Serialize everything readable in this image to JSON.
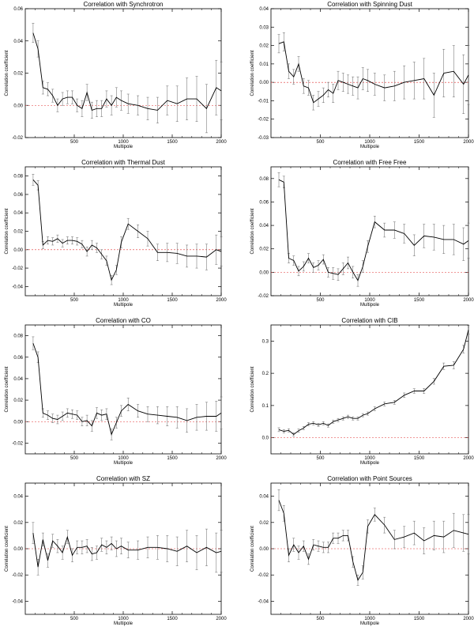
{
  "chart_data": [
    {
      "type": "line",
      "title": "Correlation with Synchrotron",
      "xlabel": "Multipole",
      "ylabel": "Correlation coefficient",
      "xlim": [
        0,
        2000
      ],
      "ylim": [
        -0.02,
        0.06
      ],
      "xticks": [
        "500",
        "1000",
        "1500",
        "2000"
      ],
      "yticks": [
        "-0.02",
        "0.00",
        "0.02",
        "0.04",
        "0.06"
      ],
      "zero_line": true,
      "x": [
        80,
        130,
        180,
        230,
        280,
        330,
        380,
        430,
        480,
        530,
        580,
        630,
        680,
        730,
        780,
        830,
        880,
        930,
        980,
        1050,
        1150,
        1250,
        1350,
        1450,
        1550,
        1650,
        1750,
        1850,
        1950,
        2000
      ],
      "y": [
        0.045,
        0.035,
        0.011,
        0.01,
        0.006,
        0.0,
        0.004,
        0.005,
        0.005,
        0.0,
        -0.002,
        0.008,
        -0.003,
        -0.002,
        -0.002,
        0.004,
        0.0,
        0.005,
        0.003,
        0.001,
        0.0,
        -0.002,
        -0.003,
        0.003,
        0.001,
        0.004,
        0.004,
        -0.002,
        0.011,
        0.009
      ],
      "err": [
        0.006,
        0.005,
        0.004,
        0.004,
        0.004,
        0.004,
        0.004,
        0.004,
        0.004,
        0.004,
        0.005,
        0.005,
        0.005,
        0.005,
        0.005,
        0.005,
        0.006,
        0.006,
        0.006,
        0.006,
        0.006,
        0.007,
        0.008,
        0.009,
        0.011,
        0.013,
        0.014,
        0.015,
        0.017,
        0.018
      ]
    },
    {
      "type": "line",
      "title": "Correlation with Spinning Dust",
      "xlabel": "Multipole",
      "ylabel": "Correlation coefficient",
      "xlim": [
        0,
        2000
      ],
      "ylim": [
        -0.03,
        0.04
      ],
      "xticks": [
        "500",
        "1000",
        "1500",
        "2000"
      ],
      "yticks": [
        "-0.03",
        "-0.02",
        "-0.01",
        "0.00",
        "0.01",
        "0.02",
        "0.03",
        "0.04"
      ],
      "zero_line": true,
      "x": [
        80,
        130,
        180,
        230,
        280,
        330,
        380,
        430,
        480,
        530,
        580,
        630,
        680,
        730,
        780,
        830,
        880,
        930,
        980,
        1050,
        1150,
        1250,
        1350,
        1450,
        1550,
        1650,
        1750,
        1850,
        1950,
        2000
      ],
      "y": [
        0.021,
        0.022,
        0.006,
        0.003,
        0.01,
        -0.002,
        -0.003,
        -0.011,
        -0.009,
        -0.007,
        -0.004,
        -0.006,
        0.001,
        0.0,
        -0.001,
        -0.002,
        -0.003,
        0.002,
        0.001,
        -0.001,
        -0.003,
        -0.002,
        0.0,
        0.001,
        0.002,
        -0.007,
        0.005,
        0.006,
        -0.001,
        0.004
      ],
      "err": [
        0.005,
        0.005,
        0.004,
        0.004,
        0.004,
        0.004,
        0.004,
        0.004,
        0.004,
        0.004,
        0.004,
        0.005,
        0.005,
        0.005,
        0.005,
        0.005,
        0.006,
        0.006,
        0.006,
        0.006,
        0.007,
        0.008,
        0.009,
        0.01,
        0.011,
        0.012,
        0.013,
        0.014,
        0.016,
        0.016
      ]
    },
    {
      "type": "line",
      "title": "Correlation with Thermal Dust",
      "xlabel": "Multipole",
      "ylabel": "Correlation coefficient",
      "xlim": [
        0,
        2000
      ],
      "ylim": [
        -0.05,
        0.09
      ],
      "xticks": [
        "500",
        "1000",
        "1500",
        "2000"
      ],
      "yticks": [
        "-0.04",
        "-0.02",
        "0.00",
        "0.02",
        "0.04",
        "0.06",
        "0.08"
      ],
      "zero_line": true,
      "x": [
        80,
        130,
        180,
        230,
        280,
        330,
        380,
        430,
        480,
        530,
        580,
        630,
        680,
        730,
        780,
        830,
        880,
        930,
        980,
        1050,
        1150,
        1250,
        1350,
        1450,
        1550,
        1650,
        1750,
        1850,
        1950,
        2000
      ],
      "y": [
        0.076,
        0.07,
        0.005,
        0.01,
        0.009,
        0.012,
        0.007,
        0.01,
        0.01,
        0.009,
        0.006,
        -0.002,
        0.005,
        0.002,
        -0.005,
        -0.012,
        -0.033,
        -0.022,
        0.008,
        0.028,
        0.02,
        0.012,
        -0.003,
        -0.003,
        -0.004,
        -0.007,
        -0.007,
        -0.008,
        0.0,
        -0.002
      ],
      "err": [
        0.006,
        0.005,
        0.004,
        0.004,
        0.004,
        0.004,
        0.004,
        0.004,
        0.004,
        0.004,
        0.004,
        0.005,
        0.005,
        0.005,
        0.005,
        0.005,
        0.005,
        0.005,
        0.006,
        0.006,
        0.007,
        0.008,
        0.009,
        0.01,
        0.011,
        0.012,
        0.013,
        0.014,
        0.016,
        0.016
      ]
    },
    {
      "type": "line",
      "title": "Correlation with Free Free",
      "xlabel": "Multipole",
      "ylabel": "Correlation coefficient",
      "xlim": [
        0,
        2000
      ],
      "ylim": [
        -0.02,
        0.09
      ],
      "xticks": [
        "500",
        "1000",
        "1500",
        "2000"
      ],
      "yticks": [
        "-0.02",
        "0.00",
        "0.02",
        "0.04",
        "0.06",
        "0.08"
      ],
      "zero_line": true,
      "x": [
        80,
        130,
        180,
        230,
        280,
        330,
        380,
        430,
        480,
        530,
        580,
        630,
        680,
        730,
        780,
        830,
        880,
        930,
        980,
        1050,
        1150,
        1250,
        1350,
        1450,
        1550,
        1650,
        1750,
        1850,
        1950,
        2000
      ],
      "y": [
        0.079,
        0.077,
        0.012,
        0.01,
        0.001,
        0.005,
        0.012,
        0.004,
        0.006,
        0.011,
        0.0,
        -0.001,
        -0.002,
        0.003,
        0.008,
        0.0,
        -0.007,
        0.005,
        0.022,
        0.043,
        0.036,
        0.036,
        0.033,
        0.023,
        0.031,
        0.03,
        0.028,
        0.028,
        0.024,
        0.027
      ],
      "err": [
        0.006,
        0.005,
        0.004,
        0.004,
        0.004,
        0.004,
        0.004,
        0.004,
        0.004,
        0.004,
        0.004,
        0.005,
        0.005,
        0.005,
        0.005,
        0.005,
        0.005,
        0.005,
        0.005,
        0.005,
        0.006,
        0.007,
        0.008,
        0.009,
        0.01,
        0.011,
        0.012,
        0.013,
        0.014,
        0.015
      ]
    },
    {
      "type": "line",
      "title": "Correlation with CO",
      "xlabel": "Multipole",
      "ylabel": "Correlation coefficient",
      "xlim": [
        0,
        2000
      ],
      "ylim": [
        -0.03,
        0.09
      ],
      "xticks": [
        "500",
        "1000",
        "1500",
        "2000"
      ],
      "yticks": [
        "-0.02",
        "0.00",
        "0.02",
        "0.04",
        "0.06",
        "0.08"
      ],
      "zero_line": true,
      "x": [
        80,
        130,
        180,
        230,
        280,
        330,
        380,
        430,
        480,
        530,
        580,
        630,
        680,
        730,
        780,
        830,
        880,
        930,
        980,
        1050,
        1150,
        1250,
        1350,
        1450,
        1550,
        1650,
        1750,
        1850,
        1950,
        2000
      ],
      "y": [
        0.073,
        0.06,
        0.008,
        0.006,
        0.003,
        0.002,
        0.005,
        0.008,
        0.007,
        0.006,
        0.0,
        0.001,
        -0.004,
        0.008,
        0.006,
        0.007,
        -0.012,
        -0.001,
        0.01,
        0.016,
        0.01,
        0.007,
        0.006,
        0.005,
        0.004,
        0.001,
        0.004,
        0.005,
        0.005,
        0.008
      ],
      "err": [
        0.006,
        0.005,
        0.004,
        0.004,
        0.004,
        0.004,
        0.004,
        0.004,
        0.004,
        0.004,
        0.004,
        0.005,
        0.005,
        0.005,
        0.005,
        0.005,
        0.005,
        0.005,
        0.005,
        0.006,
        0.006,
        0.007,
        0.008,
        0.009,
        0.01,
        0.011,
        0.012,
        0.013,
        0.014,
        0.015
      ]
    },
    {
      "type": "line",
      "title": "Correlation with CIB",
      "xlabel": "Multipole",
      "ylabel": "Correlation coefficient",
      "xlim": [
        0,
        2000
      ],
      "ylim": [
        -0.05,
        0.35
      ],
      "xticks": [
        "500",
        "1000",
        "1500",
        "2000"
      ],
      "yticks": [
        "0.0",
        "0.1",
        "0.2",
        "0.3"
      ],
      "zero_line": true,
      "x": [
        80,
        130,
        180,
        230,
        280,
        330,
        380,
        430,
        480,
        530,
        580,
        630,
        680,
        730,
        780,
        830,
        880,
        930,
        980,
        1050,
        1150,
        1250,
        1350,
        1450,
        1550,
        1650,
        1750,
        1850,
        1950,
        2000
      ],
      "y": [
        0.025,
        0.02,
        0.023,
        0.01,
        0.022,
        0.03,
        0.042,
        0.045,
        0.04,
        0.045,
        0.038,
        0.05,
        0.055,
        0.06,
        0.065,
        0.06,
        0.06,
        0.07,
        0.075,
        0.09,
        0.105,
        0.11,
        0.132,
        0.145,
        0.145,
        0.175,
        0.222,
        0.225,
        0.275,
        0.335
      ],
      "err": [
        0.006,
        0.005,
        0.005,
        0.005,
        0.005,
        0.005,
        0.005,
        0.005,
        0.005,
        0.005,
        0.005,
        0.005,
        0.005,
        0.005,
        0.005,
        0.005,
        0.005,
        0.005,
        0.005,
        0.006,
        0.006,
        0.006,
        0.007,
        0.007,
        0.008,
        0.009,
        0.01,
        0.011,
        0.012,
        0.013
      ]
    },
    {
      "type": "line",
      "title": "Correlation with SZ",
      "xlabel": "Multipole",
      "ylabel": "Correlation coefficient",
      "xlim": [
        0,
        2000
      ],
      "ylim": [
        -0.05,
        0.05
      ],
      "xticks": [
        "500",
        "1000",
        "1500",
        "2000"
      ],
      "yticks": [
        "-0.04",
        "-0.02",
        "0.00",
        "0.02",
        "0.04"
      ],
      "zero_line": true,
      "x": [
        80,
        130,
        180,
        230,
        280,
        330,
        380,
        430,
        480,
        530,
        580,
        630,
        680,
        730,
        780,
        830,
        880,
        930,
        980,
        1050,
        1150,
        1250,
        1350,
        1450,
        1550,
        1650,
        1750,
        1850,
        1950,
        2000
      ],
      "y": [
        0.012,
        -0.014,
        0.007,
        -0.009,
        0.006,
        0.002,
        -0.003,
        0.009,
        -0.005,
        0.001,
        0.001,
        0.002,
        -0.004,
        -0.003,
        0.003,
        0.001,
        0.004,
        0.0,
        0.002,
        -0.001,
        -0.001,
        0.001,
        0.001,
        0.0,
        -0.002,
        0.002,
        -0.003,
        0.001,
        -0.003,
        -0.002
      ],
      "err": [
        0.008,
        0.006,
        0.005,
        0.005,
        0.005,
        0.005,
        0.005,
        0.005,
        0.005,
        0.005,
        0.005,
        0.005,
        0.005,
        0.005,
        0.005,
        0.005,
        0.005,
        0.006,
        0.006,
        0.006,
        0.007,
        0.008,
        0.009,
        0.01,
        0.011,
        0.012,
        0.013,
        0.014,
        0.015,
        0.016
      ]
    },
    {
      "type": "line",
      "title": "Correlation with Point Sources",
      "xlabel": "Multipole",
      "ylabel": "Correlation coefficient",
      "xlim": [
        0,
        2000
      ],
      "ylim": [
        -0.05,
        0.05
      ],
      "xticks": [
        "500",
        "1000",
        "1500",
        "2000"
      ],
      "yticks": [
        "-0.04",
        "-0.02",
        "0.00",
        "0.02",
        "0.04"
      ],
      "zero_line": true,
      "x": [
        80,
        130,
        180,
        230,
        280,
        330,
        380,
        430,
        480,
        530,
        580,
        630,
        680,
        730,
        780,
        830,
        880,
        930,
        980,
        1050,
        1150,
        1250,
        1350,
        1450,
        1550,
        1650,
        1750,
        1850,
        1950,
        2000
      ],
      "y": [
        0.037,
        0.027,
        -0.005,
        0.003,
        -0.003,
        0.002,
        -0.008,
        0.003,
        0.002,
        0.001,
        0.001,
        0.008,
        0.008,
        0.01,
        0.01,
        -0.01,
        -0.024,
        -0.018,
        0.017,
        0.026,
        0.018,
        0.007,
        0.009,
        0.012,
        0.006,
        0.01,
        0.009,
        0.014,
        0.012,
        0.011
      ],
      "err": [
        0.008,
        0.006,
        0.005,
        0.005,
        0.005,
        0.004,
        0.004,
        0.004,
        0.004,
        0.004,
        0.004,
        0.004,
        0.004,
        0.004,
        0.004,
        0.004,
        0.004,
        0.005,
        0.005,
        0.005,
        0.006,
        0.007,
        0.008,
        0.009,
        0.01,
        0.011,
        0.012,
        0.013,
        0.014,
        0.015
      ]
    }
  ]
}
